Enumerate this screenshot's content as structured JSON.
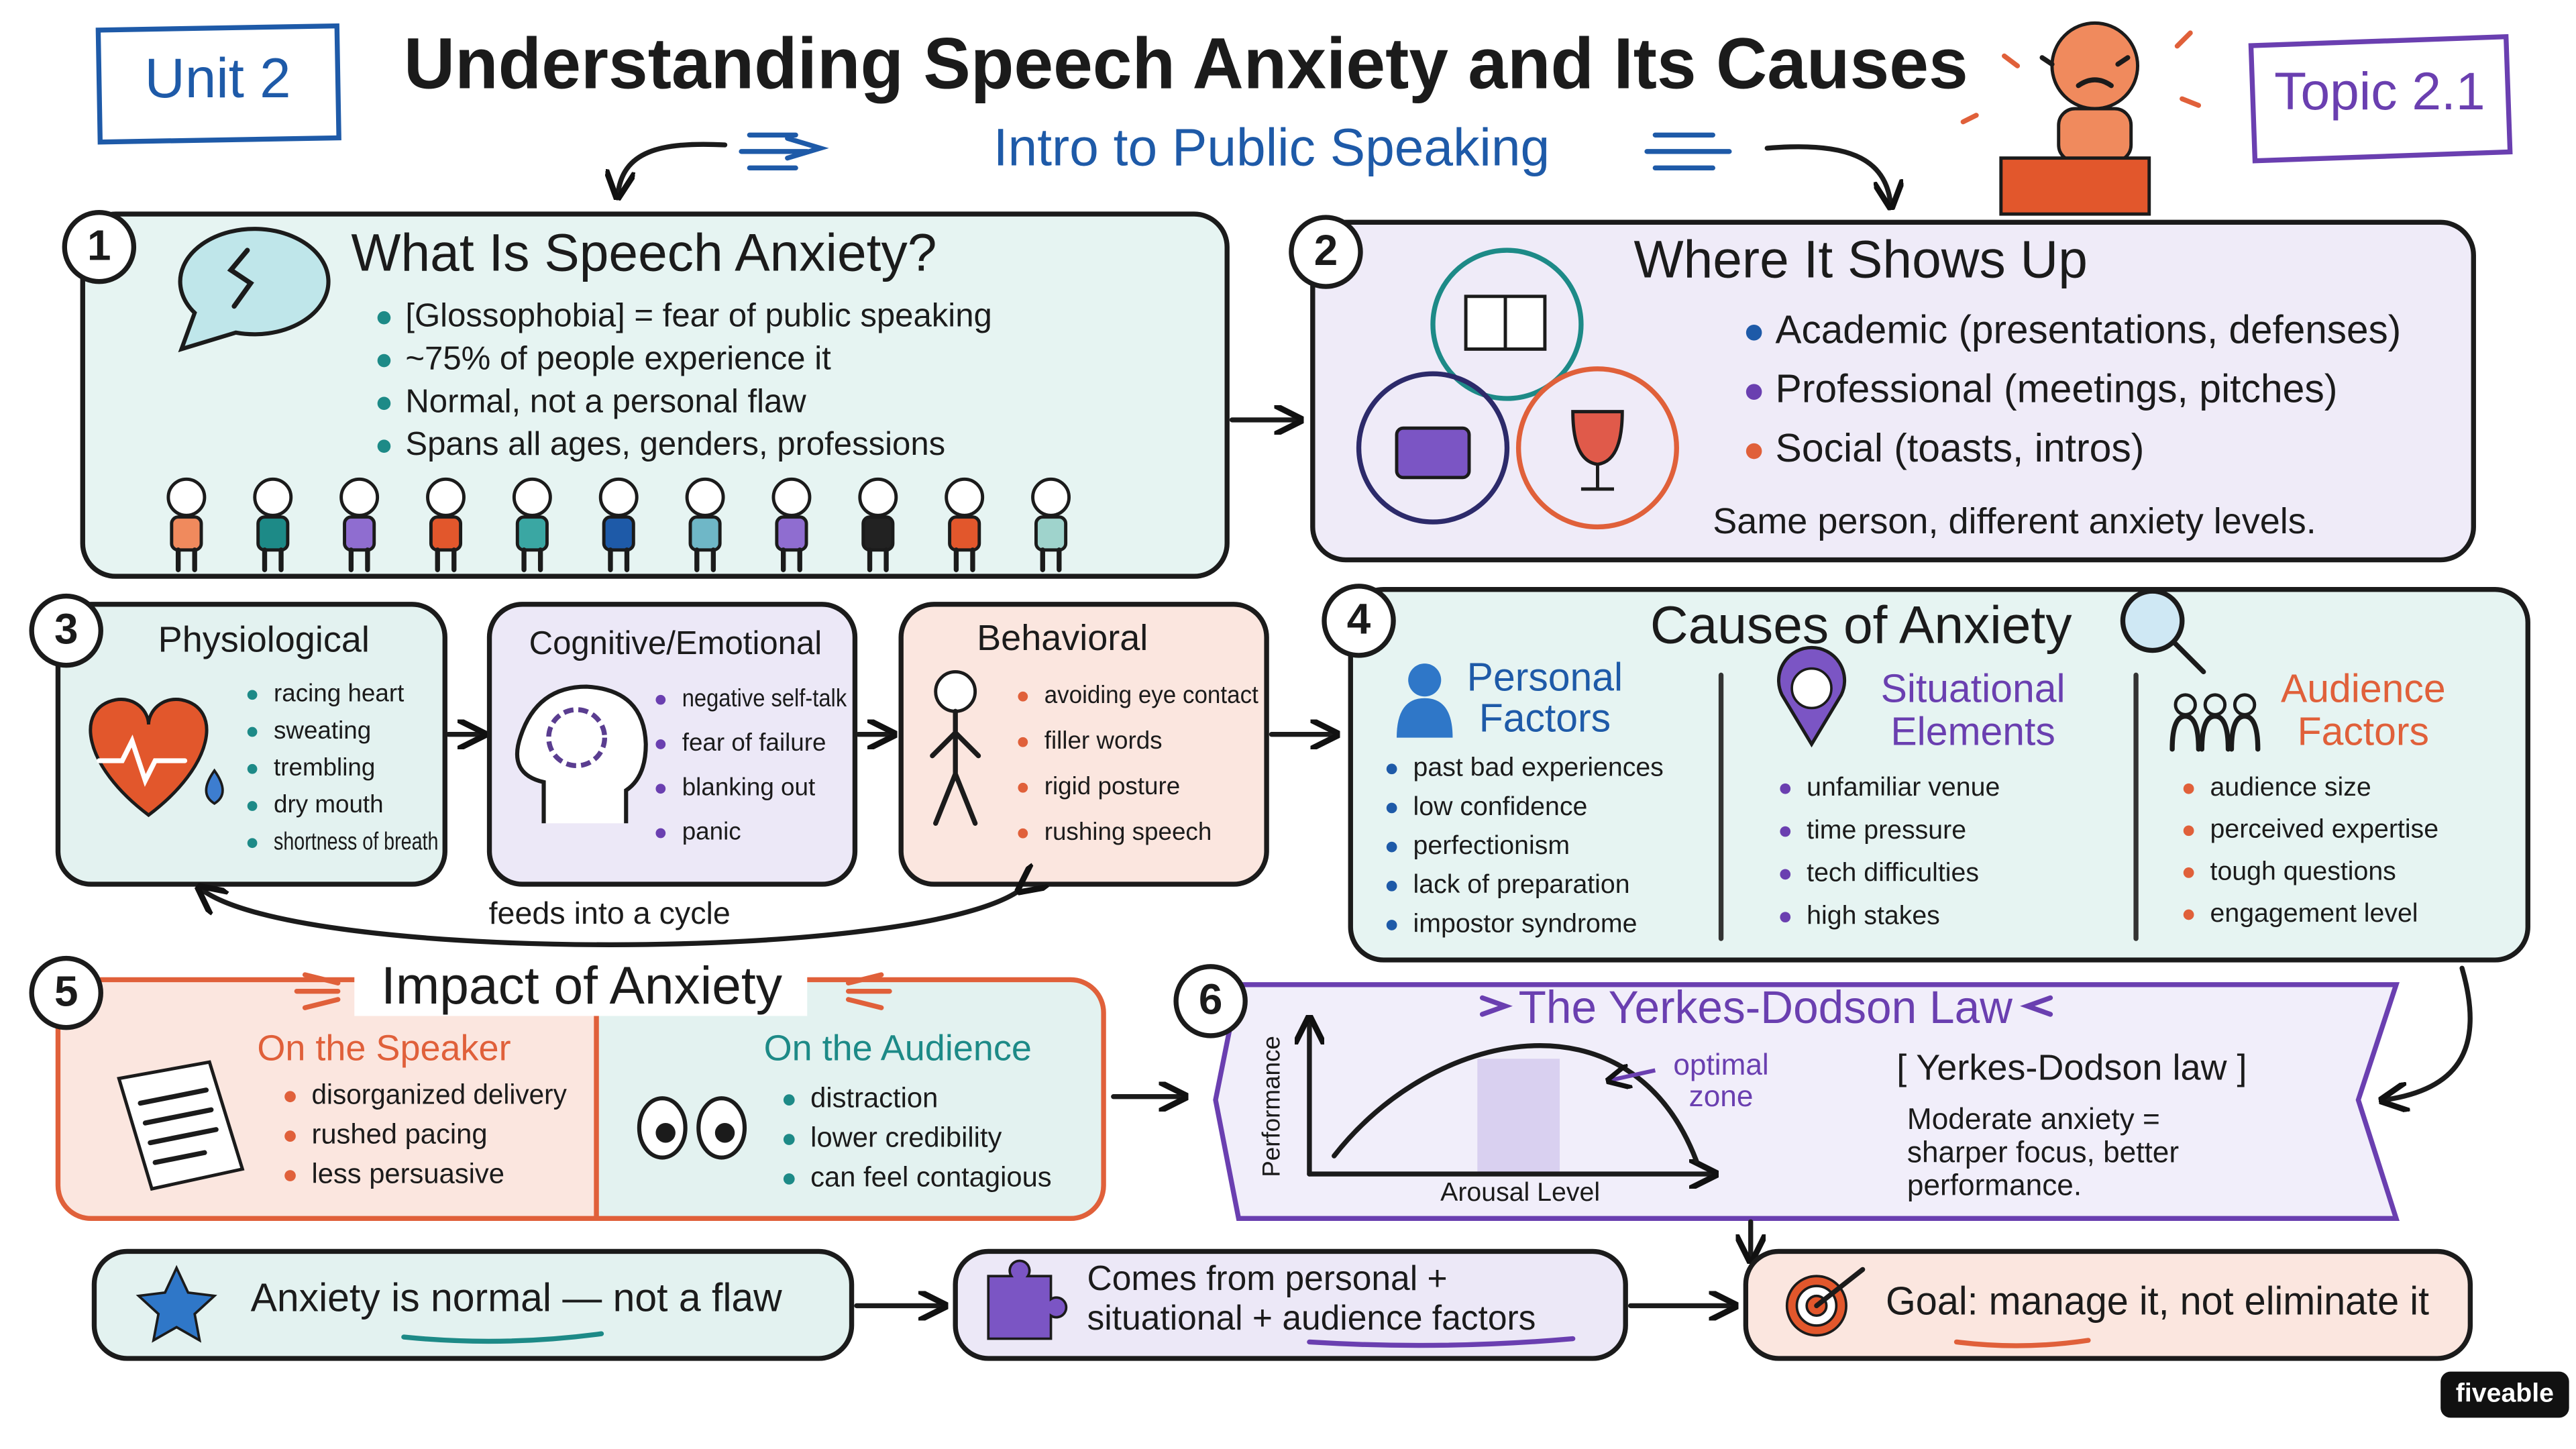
{
  "header": {
    "unit": "Unit 2",
    "title": "Understanding Speech Anxiety and Its Causes",
    "subtitle": "Intro to Public Speaking",
    "topic": "Topic 2.1"
  },
  "sections": [
    {
      "number": "1",
      "title": "What Is Speech Anxiety?",
      "bullets": [
        "[Glossophobia] = fear of public speaking",
        "~75% of people experience it",
        "Normal, not a personal flaw",
        "Spans all ages, genders, professions"
      ]
    },
    {
      "number": "2",
      "title": "Where It Shows Up",
      "bullets": [
        "Academic (presentations, defenses)",
        "Professional (meetings, pitches)",
        "Social (toasts, intros)"
      ],
      "note": "Same person, different anxiety levels."
    },
    {
      "number": "3",
      "groups": [
        {
          "title": [
            "Physiological"
          ],
          "bullets": [
            "racing heart",
            "sweating",
            "trembling",
            "dry mouth",
            "shortness of breath"
          ]
        },
        {
          "title": [
            "Cognitive/Emotional"
          ],
          "bullets": [
            "negative self-talk",
            "fear of failure",
            "blanking out",
            "panic"
          ]
        },
        {
          "title": [
            "Behavioral"
          ],
          "bullets": [
            "avoiding eye contact",
            "filler words",
            "rigid posture",
            "rushing speech"
          ]
        }
      ],
      "cycle_label": "feeds into a cycle"
    },
    {
      "number": "4",
      "title": "Causes of Anxiety",
      "groups": [
        {
          "title": [
            "Personal",
            "Factors"
          ],
          "bullets": [
            "past bad experiences",
            "low confidence",
            "perfectionism",
            "lack of preparation",
            "impostor syndrome"
          ]
        },
        {
          "title": [
            "Situational",
            "Elements"
          ],
          "bullets": [
            "unfamiliar venue",
            "time pressure",
            "tech difficulties",
            "high stakes"
          ]
        },
        {
          "title": [
            "Audience",
            "Factors"
          ],
          "bullets": [
            "audience size",
            "perceived expertise",
            "tough questions",
            "engagement level"
          ]
        }
      ]
    },
    {
      "number": "5",
      "title": "Impact of Anxiety",
      "groups": [
        {
          "title": [
            "On the Speaker"
          ],
          "bullets": [
            "disorganized delivery",
            "rushed pacing",
            "less persuasive"
          ]
        },
        {
          "title": [
            "On the Audience"
          ],
          "bullets": [
            "distraction",
            "lower credibility",
            "can feel contagious"
          ]
        }
      ]
    },
    {
      "number": "6",
      "title": "The Yerkes-Dodson Law",
      "y_axis": "Performance",
      "x_axis": "Arousal Level",
      "zone_label": [
        "optimal",
        "zone"
      ],
      "term": "[ Yerkes-Dodson law ]",
      "definition": [
        "Moderate anxiety =",
        "sharper focus, better",
        "performance."
      ]
    }
  ],
  "summary": [
    [
      "Anxiety is normal — not a flaw"
    ],
    [
      "Comes from personal +",
      "situational + audience factors"
    ],
    [
      "Goal: manage it, not eliminate it"
    ]
  ],
  "brand": "fiveable"
}
